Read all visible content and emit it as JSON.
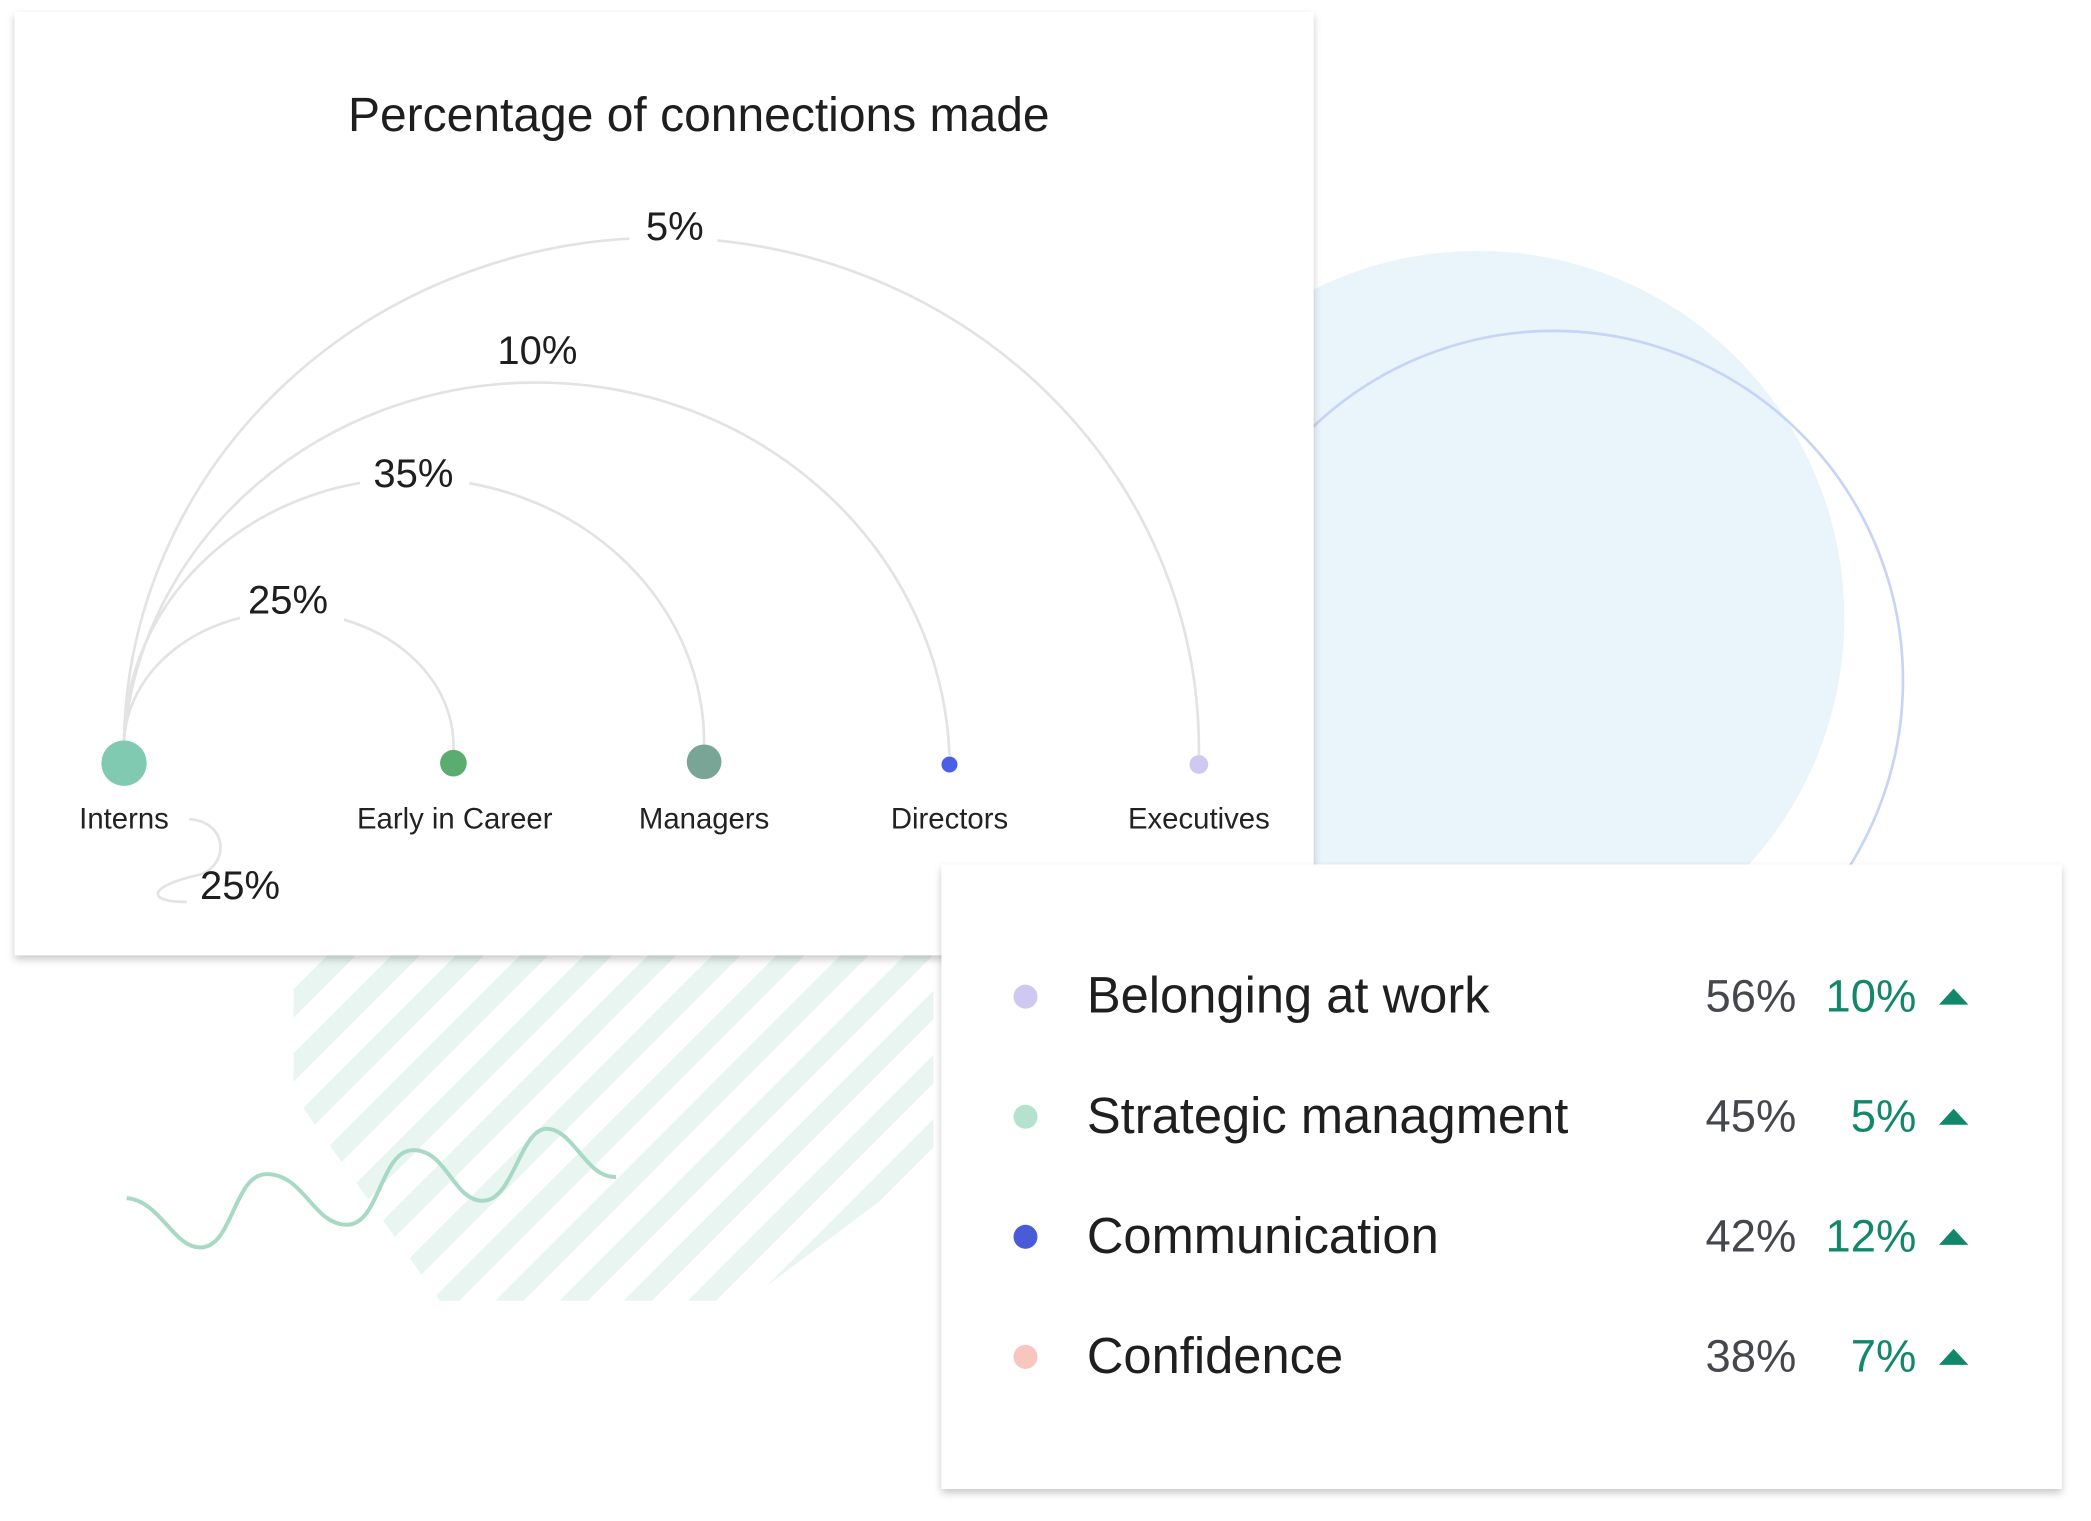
{
  "arc_card": {
    "title": "Percentage of connections made",
    "nodes": [
      {
        "label": "Interns"
      },
      {
        "label": "Early in Career"
      },
      {
        "label": "Managers"
      },
      {
        "label": "Directors"
      },
      {
        "label": "Executives"
      }
    ],
    "arcs": [
      {
        "label": "25%"
      },
      {
        "label": "35%"
      },
      {
        "label": "10%"
      },
      {
        "label": "5%"
      }
    ],
    "self_loop": {
      "label": "25%"
    }
  },
  "metrics_card": {
    "rows": [
      {
        "label": "Belonging at work",
        "value": "56%",
        "change": "10%"
      },
      {
        "label": "Strategic managment",
        "value": "45%",
        "change": "5%"
      },
      {
        "label": "Communication",
        "value": "42%",
        "change": "12%"
      },
      {
        "label": "Confidence",
        "value": "38%",
        "change": "7%"
      }
    ]
  }
}
